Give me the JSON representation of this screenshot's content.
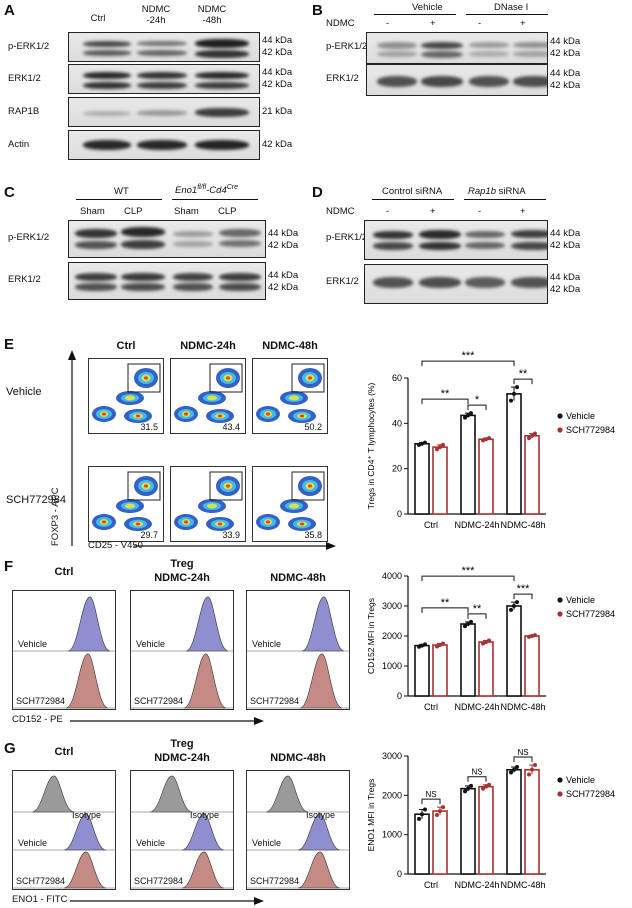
{
  "panels": {
    "A": {
      "label": "A",
      "lanes": [
        "Ctrl",
        "NDMC\n-24h",
        "NDMC\n-48h"
      ],
      "rows": [
        {
          "name": "p-ERK1/2",
          "kda": "44 kDa\n42 kDa"
        },
        {
          "name": "ERK1/2",
          "kda": "44 kDa\n42 kDa"
        },
        {
          "name": "RAP1B",
          "kda": "21 kDa"
        },
        {
          "name": "Actin",
          "kda": "42 kDa"
        }
      ]
    },
    "B": {
      "label": "B",
      "groups": [
        "Vehicle",
        "DNase I"
      ],
      "treatment_label": "NDMC",
      "signs": [
        "-",
        "+",
        "-",
        "+"
      ],
      "rows": [
        {
          "name": "p-ERK1/2",
          "kda": "44 kDa\n42 kDa"
        },
        {
          "name": "ERK1/2",
          "kda": "44 kDa\n42 kDa"
        }
      ]
    },
    "C": {
      "label": "C",
      "groups": [
        "WT",
        "Eno1"
      ],
      "group2_sup1": "fl/fl",
      "group2_mid": "-Cd4",
      "group2_sup2": "Cre",
      "lanes": [
        "Sham",
        "CLP",
        "Sham",
        "CLP"
      ],
      "rows": [
        {
          "name": "p-ERK1/2",
          "kda": "44 kDa\n42 kDa"
        },
        {
          "name": "ERK1/2",
          "kda": "44 kDa\n42 kDa"
        }
      ]
    },
    "D": {
      "label": "D",
      "groups": [
        "Control siRNA",
        "Rap1b siRNA"
      ],
      "treatment_label": "NDMC",
      "signs": [
        "-",
        "+",
        "-",
        "+"
      ],
      "rows": [
        {
          "name": "p-ERK1/2",
          "kda": "44 kDa\n42 kDa"
        },
        {
          "name": "ERK1/2",
          "kda": "44 kDa\n42 kDa"
        }
      ]
    },
    "E": {
      "label": "E",
      "columns": [
        "Ctrl",
        "NDMC-24h",
        "NDMC-48h"
      ],
      "row_labels": [
        "Vehicle",
        "SCH772984"
      ],
      "gate_values": [
        [
          "31.5",
          "43.4",
          "50.2"
        ],
        [
          "29.7",
          "33.9",
          "35.8"
        ]
      ],
      "y_axis": "FOXP3 - APC",
      "x_axis": "CD25 - V450"
    },
    "F": {
      "label": "F",
      "header": "Treg",
      "columns": [
        "Ctrl",
        "NDMC-24h",
        "NDMC-48h"
      ],
      "track_labels": [
        "Vehicle",
        "SCH772984"
      ],
      "x_axis": "CD152 - PE"
    },
    "G": {
      "label": "G",
      "header": "Treg",
      "columns": [
        "Ctrl",
        "NDMC-24h",
        "NDMC-48h"
      ],
      "track_labels": [
        "Isotype",
        "Vehicle",
        "SCH772984"
      ],
      "x_axis": "ENO1 - FITC"
    }
  },
  "chart_data": [
    {
      "id": "E",
      "type": "bar",
      "categories": [
        "Ctrl",
        "NDMC-24h",
        "NDMC-48h"
      ],
      "series": [
        {
          "name": "Vehicle",
          "values": [
            31,
            43.5,
            53
          ],
          "points": [
            [
              30.5,
              31,
              31.5
            ],
            [
              42.5,
              43.5,
              44.5
            ],
            [
              50,
              53,
              56
            ]
          ]
        },
        {
          "name": "SCH772984",
          "values": [
            29.5,
            33,
            34.5
          ],
          "points": [
            [
              28.5,
              29.5,
              30.5
            ],
            [
              32.5,
              33,
              33.5
            ],
            [
              33.5,
              34.5,
              35.5
            ]
          ]
        }
      ],
      "ylabel": "Tregs in CD4⁺ T lymphocytes (%)",
      "ylim": [
        0,
        60
      ],
      "yticks": [
        0,
        20,
        40,
        60
      ],
      "sig": [
        {
          "from": [
            0,
            0
          ],
          "to": [
            2,
            0
          ],
          "label": "***"
        },
        {
          "from": [
            0,
            0
          ],
          "to": [
            1,
            0
          ],
          "label": "**"
        },
        {
          "from": [
            1,
            0
          ],
          "to": [
            1,
            1
          ],
          "label": "*"
        },
        {
          "from": [
            2,
            0
          ],
          "to": [
            2,
            1
          ],
          "label": "**"
        }
      ]
    },
    {
      "id": "F",
      "type": "bar",
      "categories": [
        "Ctrl",
        "NDMC-24h",
        "NDMC-48h"
      ],
      "series": [
        {
          "name": "Vehicle",
          "values": [
            1680,
            2400,
            3000
          ],
          "points": [
            [
              1640,
              1680,
              1720
            ],
            [
              2330,
              2400,
              2470
            ],
            [
              2870,
              3000,
              3130
            ]
          ]
        },
        {
          "name": "SCH772984",
          "values": [
            1700,
            1800,
            2000
          ],
          "points": [
            [
              1650,
              1700,
              1750
            ],
            [
              1750,
              1800,
              1850
            ],
            [
              1970,
              2000,
              2030
            ]
          ]
        }
      ],
      "ylabel": "CD152 MFI in Tregs",
      "ylim": [
        0,
        4000
      ],
      "yticks": [
        0,
        1000,
        2000,
        3000,
        4000
      ],
      "sig": [
        {
          "from": [
            0,
            0
          ],
          "to": [
            2,
            0
          ],
          "label": "***"
        },
        {
          "from": [
            0,
            0
          ],
          "to": [
            1,
            0
          ],
          "label": "**"
        },
        {
          "from": [
            1,
            0
          ],
          "to": [
            1,
            1
          ],
          "label": "**"
        },
        {
          "from": [
            2,
            0
          ],
          "to": [
            2,
            1
          ],
          "label": "***"
        }
      ]
    },
    {
      "id": "G",
      "type": "bar",
      "categories": [
        "Ctrl",
        "NDMC-24h",
        "NDMC-48h"
      ],
      "series": [
        {
          "name": "Vehicle",
          "values": [
            1520,
            2170,
            2650
          ],
          "points": [
            [
              1400,
              1520,
              1640
            ],
            [
              2100,
              2170,
              2240
            ],
            [
              2580,
              2650,
              2720
            ]
          ]
        },
        {
          "name": "SCH772984",
          "values": [
            1600,
            2220,
            2650
          ],
          "points": [
            [
              1500,
              1600,
              1700
            ],
            [
              2170,
              2220,
              2270
            ],
            [
              2530,
              2650,
              2770
            ]
          ]
        }
      ],
      "ylabel": "ENO1 MFI in Tregs",
      "ylim": [
        0,
        3000
      ],
      "yticks": [
        0,
        1000,
        2000,
        3000
      ],
      "sig": [
        {
          "from": [
            0,
            0
          ],
          "to": [
            0,
            1
          ],
          "label": "NS"
        },
        {
          "from": [
            1,
            0
          ],
          "to": [
            1,
            1
          ],
          "label": "NS"
        },
        {
          "from": [
            2,
            0
          ],
          "to": [
            2,
            1
          ],
          "label": "NS"
        }
      ]
    }
  ],
  "colors": {
    "vehicle": "#111111",
    "sch": "#a83232",
    "flow_blue": "#8f8fd0",
    "flow_red": "#c58a84",
    "isotype": "#9a9a9a"
  }
}
